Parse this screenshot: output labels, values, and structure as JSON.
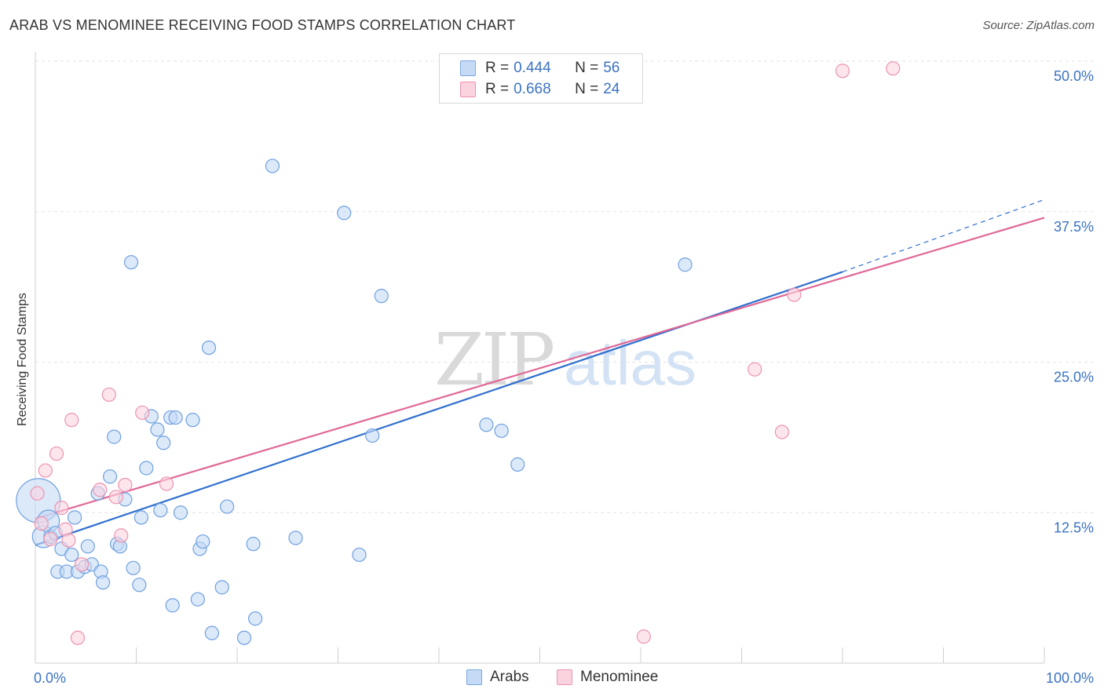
{
  "title": "ARAB VS MENOMINEE RECEIVING FOOD STAMPS CORRELATION CHART",
  "source": "Source: ZipAtlas.com",
  "watermark": "ZIPatlas",
  "legend": [
    {
      "r_label": "R =",
      "r_value": "0.444",
      "n_label": "N =",
      "n_value": "56",
      "color": "#aecbf0",
      "border": "#7aa6e0"
    },
    {
      "r_label": "R =",
      "r_value": "0.668",
      "n_label": "N =",
      "n_value": "24",
      "color": "#f9c4d4",
      "border": "#ec93b0"
    }
  ],
  "bottom_legend": [
    {
      "label": "Arabs",
      "color": "#aecbf0",
      "border": "#7aa6e0"
    },
    {
      "label": "Menominee",
      "color": "#f9c4d4",
      "border": "#ec93b0"
    }
  ],
  "chart_data": {
    "type": "scatter",
    "title": "ARAB VS MENOMINEE RECEIVING FOOD STAMPS CORRELATION CHART",
    "xlabel": "",
    "ylabel": "Receiving Food Stamps",
    "xlim": [
      0,
      100
    ],
    "ylim": [
      0,
      50
    ],
    "x_tick_labels": [
      "0.0%",
      "100.0%"
    ],
    "y_ticks": [
      12.5,
      25.0,
      37.5,
      50.0
    ],
    "y_tick_labels": [
      "12.5%",
      "25.0%",
      "37.5%",
      "50.0%"
    ],
    "grid": true,
    "legend_position": "top-center",
    "series": [
      {
        "name": "Arabs",
        "color": "#6fa0e0",
        "fill": "#c5daf5",
        "line_color": "#2f6fce",
        "trend": {
          "x0": 0,
          "y0": 9.8,
          "x1": 80,
          "y1": 32.5,
          "dash_x1": 100,
          "dash_y1": 38.5
        },
        "points": [
          [
            0.3,
            13.5
          ],
          [
            0.8,
            10.5
          ],
          [
            1.3,
            11.8
          ],
          [
            1.5,
            10.5
          ],
          [
            2,
            10.8
          ],
          [
            2.2,
            7.6
          ],
          [
            2.6,
            9.5
          ],
          [
            3.1,
            7.6
          ],
          [
            3.6,
            9.0
          ],
          [
            3.9,
            12.1
          ],
          [
            4.2,
            7.6
          ],
          [
            4.9,
            8.0
          ],
          [
            5.2,
            9.7
          ],
          [
            5.6,
            8.2
          ],
          [
            6.2,
            14.1
          ],
          [
            6.5,
            7.6
          ],
          [
            6.7,
            6.7
          ],
          [
            7.4,
            15.5
          ],
          [
            7.8,
            18.8
          ],
          [
            8.1,
            9.9
          ],
          [
            8.4,
            9.7
          ],
          [
            8.9,
            13.6
          ],
          [
            9.5,
            33.3
          ],
          [
            9.7,
            7.9
          ],
          [
            10.3,
            6.5
          ],
          [
            10.5,
            12.1
          ],
          [
            11,
            16.2
          ],
          [
            11.5,
            20.5
          ],
          [
            12.1,
            19.4
          ],
          [
            12.4,
            12.7
          ],
          [
            12.7,
            18.3
          ],
          [
            13.4,
            20.4
          ],
          [
            13.6,
            4.8
          ],
          [
            13.9,
            20.4
          ],
          [
            14.4,
            12.5
          ],
          [
            15.6,
            20.2
          ],
          [
            16.1,
            5.3
          ],
          [
            16.3,
            9.5
          ],
          [
            16.6,
            10.1
          ],
          [
            17.2,
            26.2
          ],
          [
            17.5,
            2.5
          ],
          [
            18.5,
            6.3
          ],
          [
            19,
            13.0
          ],
          [
            20.7,
            2.1
          ],
          [
            21.6,
            9.9
          ],
          [
            21.8,
            3.7
          ],
          [
            23.5,
            41.3
          ],
          [
            25.8,
            10.4
          ],
          [
            30.6,
            37.4
          ],
          [
            32.1,
            9.0
          ],
          [
            33.4,
            18.9
          ],
          [
            34.3,
            30.5
          ],
          [
            44.7,
            19.8
          ],
          [
            46.2,
            19.3
          ],
          [
            47.8,
            16.5
          ],
          [
            64.4,
            33.1
          ]
        ],
        "sizes": {
          "0": 28,
          "1": 14,
          "2": 14
        }
      },
      {
        "name": "Menominee",
        "color": "#ec93b0",
        "fill": "#fbd3df",
        "line_color": "#e06896",
        "trend": {
          "x0": 0,
          "y0": 12.0,
          "x1": 100,
          "y1": 37.0
        },
        "points": [
          [
            0.2,
            14.1
          ],
          [
            0.6,
            11.6
          ],
          [
            1.0,
            16.0
          ],
          [
            1.5,
            10.3
          ],
          [
            2.1,
            17.4
          ],
          [
            2.6,
            12.9
          ],
          [
            3.0,
            11.1
          ],
          [
            3.3,
            10.2
          ],
          [
            3.6,
            20.2
          ],
          [
            4.2,
            2.1
          ],
          [
            4.6,
            8.2
          ],
          [
            6.4,
            14.4
          ],
          [
            7.3,
            22.3
          ],
          [
            8.0,
            13.8
          ],
          [
            8.5,
            10.6
          ],
          [
            8.9,
            14.8
          ],
          [
            10.6,
            20.8
          ],
          [
            13.0,
            14.9
          ],
          [
            60.3,
            2.2
          ],
          [
            71.3,
            24.4
          ],
          [
            74.0,
            19.2
          ],
          [
            75.2,
            30.6
          ],
          [
            80.0,
            49.2
          ],
          [
            85.0,
            49.4
          ]
        ]
      }
    ]
  }
}
